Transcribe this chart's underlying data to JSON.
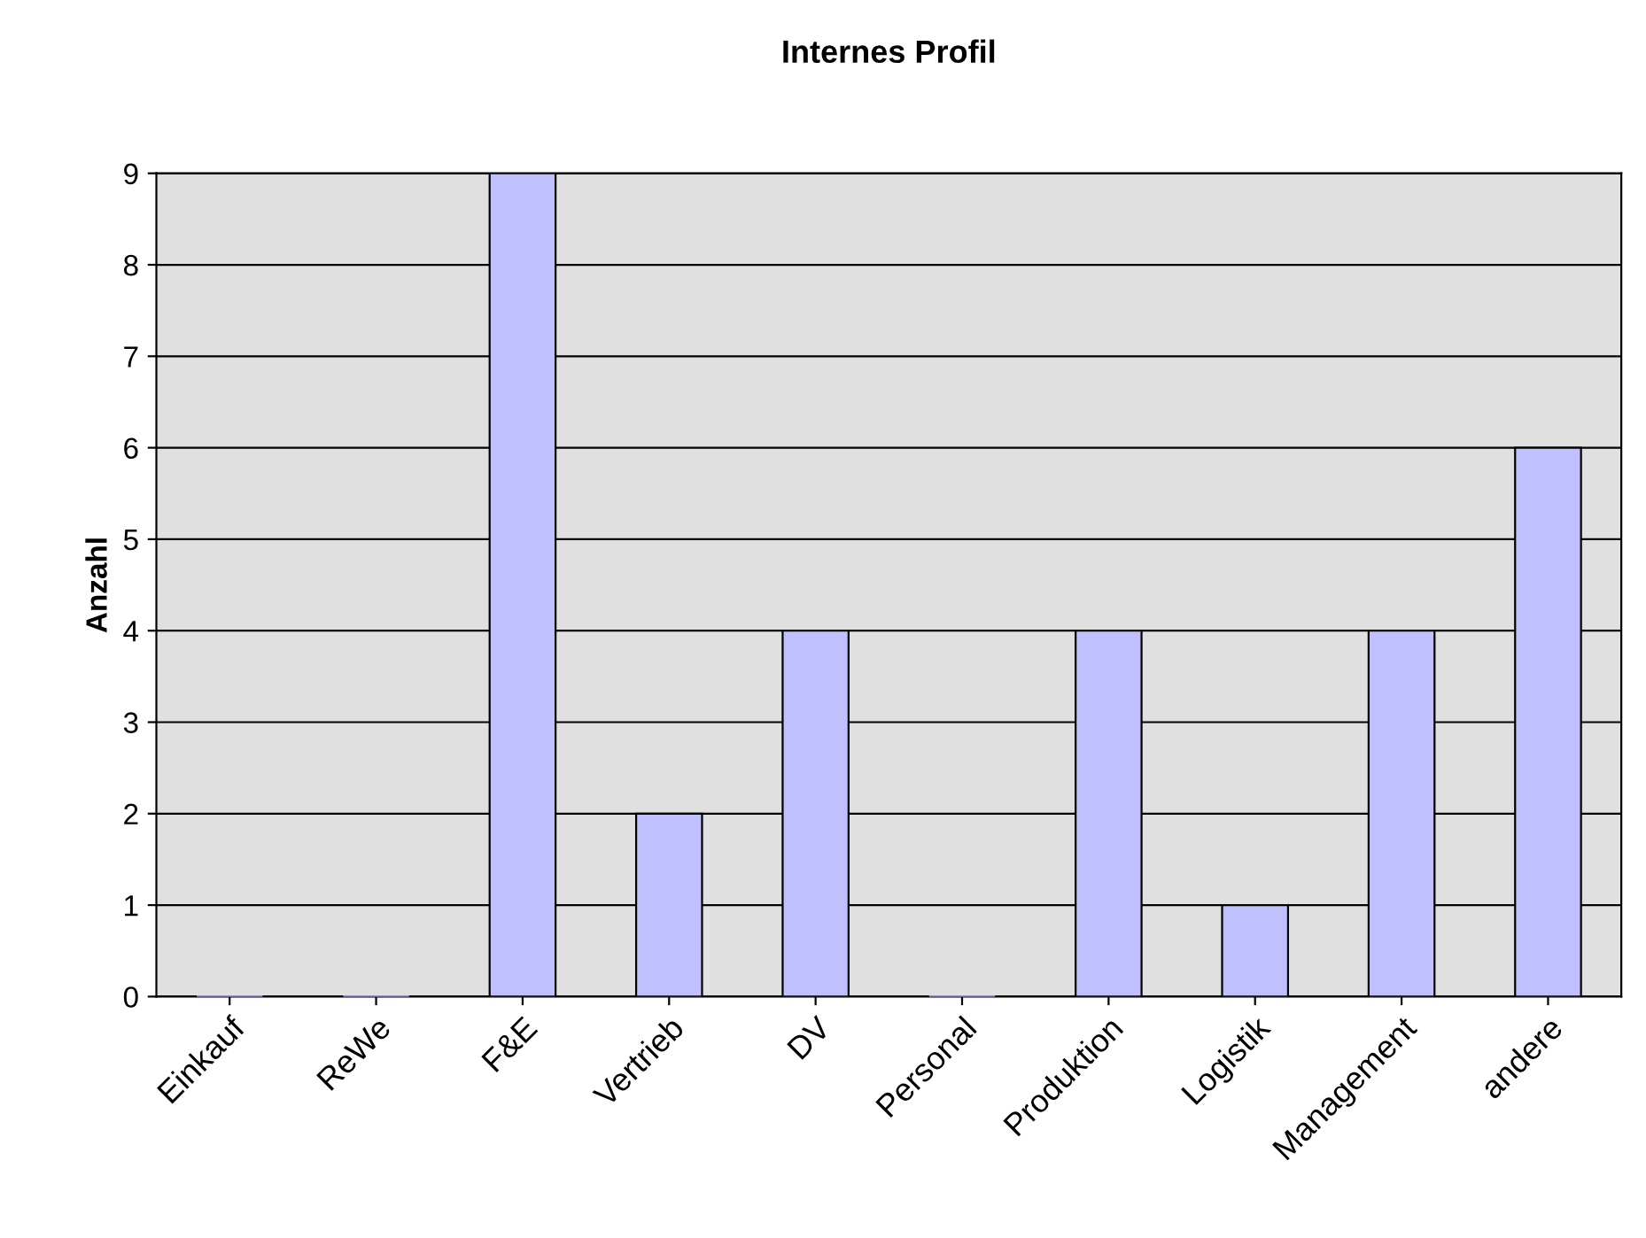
{
  "chart_data": {
    "type": "bar",
    "title": "Internes Profil",
    "ylabel": "Anzahl",
    "categories": [
      "Einkauf",
      "ReWe",
      "F&E",
      "Vertrieb",
      "DV",
      "Personal",
      "Produktion",
      "Logistik",
      "Management",
      "andere"
    ],
    "values": [
      0,
      0,
      9,
      2,
      4,
      0,
      4,
      1,
      4,
      6
    ],
    "color": "#c0c0ff",
    "ylim": [
      0,
      9
    ],
    "yticks": [
      0,
      1,
      2,
      3,
      4,
      5,
      6,
      7,
      8,
      9
    ],
    "grid": "y",
    "legend": false
  }
}
